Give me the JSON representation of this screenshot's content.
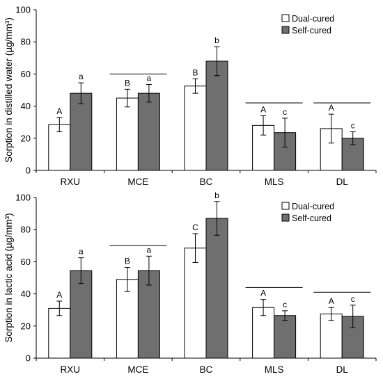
{
  "legend_labels": [
    "Dual-cured",
    "Self-cured"
  ],
  "colors": {
    "dual": "#ffffff",
    "self": "#6f6f6f",
    "axis": "#000000"
  },
  "chart_data": [
    {
      "type": "bar",
      "categories": [
        "RXU",
        "MCE",
        "BC",
        "MLS",
        "DL"
      ],
      "ylabel": "Sorption in distilled water (µg/mm³)",
      "ylim": [
        0,
        100
      ],
      "yticks": [
        0,
        20,
        40,
        60,
        80,
        100
      ],
      "legend_position": "top-right",
      "series": [
        {
          "name": "Dual-cured",
          "values": [
            28.5,
            45,
            52.5,
            28,
            26
          ],
          "errors": [
            4.5,
            5.5,
            4.5,
            6,
            9
          ],
          "letters": [
            "A",
            "B",
            "B",
            "A",
            "A"
          ]
        },
        {
          "name": "Self-cured",
          "values": [
            48,
            48,
            68,
            23.5,
            20
          ],
          "errors": [
            6.5,
            5.5,
            9,
            9,
            4
          ],
          "letters": [
            "a",
            "a",
            "b",
            "c",
            "c"
          ]
        }
      ],
      "group_lines": [
        {
          "category": "MCE",
          "y": 60
        },
        {
          "category": "MLS",
          "y": 42
        },
        {
          "category": "DL",
          "y": 42
        }
      ]
    },
    {
      "type": "bar",
      "categories": [
        "RXU",
        "MCE",
        "BC",
        "MLS",
        "DL"
      ],
      "ylabel": "Sorption in lactic acid (µg/mm³)",
      "ylim": [
        0,
        100
      ],
      "yticks": [
        0,
        20,
        40,
        60,
        80,
        100
      ],
      "legend_position": "top-right",
      "series": [
        {
          "name": "Dual-cured",
          "values": [
            31,
            49,
            68.5,
            31.5,
            27.5
          ],
          "errors": [
            4.5,
            7.5,
            9,
            5,
            4
          ],
          "letters": [
            "A",
            "B",
            "C",
            "A",
            "A"
          ]
        },
        {
          "name": "Self-cured",
          "values": [
            54.5,
            54.5,
            87,
            26.5,
            26
          ],
          "errors": [
            8,
            9,
            10.5,
            3,
            7
          ],
          "letters": [
            "a",
            "a",
            "b",
            "c",
            "c"
          ]
        }
      ],
      "group_lines": [
        {
          "category": "MCE",
          "y": 70
        },
        {
          "category": "MLS",
          "y": 44
        },
        {
          "category": "DL",
          "y": 41
        }
      ]
    }
  ]
}
